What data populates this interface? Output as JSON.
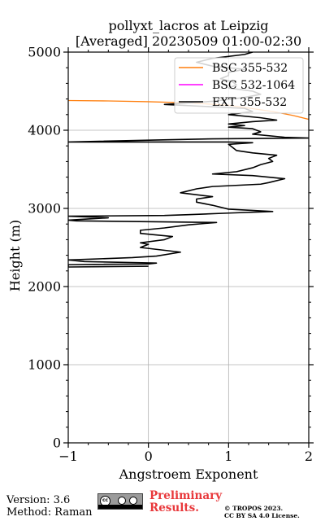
{
  "chart_data": {
    "type": "line",
    "title": "pollyxt_lacros at Leipzig",
    "subtitle": "[Averaged] 20230509 01:00-02:30",
    "xlabel": "Angstroem Exponent",
    "ylabel": "Height (m)",
    "xlim": [
      -1,
      2
    ],
    "ylim": [
      0,
      5000
    ],
    "xticks": [
      -1,
      0,
      1,
      2
    ],
    "yticks": [
      0,
      1000,
      2000,
      3000,
      4000,
      5000
    ],
    "grid": true,
    "legend_position": "top-right",
    "series": [
      {
        "name": "BSC 355-532",
        "color": "#ff7f0e",
        "points": [
          [
            2.0,
            4140
          ],
          [
            1.8,
            4190
          ],
          [
            1.55,
            4240
          ],
          [
            1.0,
            4320
          ],
          [
            0.5,
            4350
          ],
          [
            0.0,
            4365
          ],
          [
            -0.5,
            4375
          ],
          [
            -1.0,
            4380
          ]
        ]
      },
      {
        "name": "BSC 532-1064",
        "color": "#ff00ff",
        "points": []
      },
      {
        "name": "EXT 355-532",
        "color": "#000000",
        "points": [
          [
            0.0,
            2260
          ],
          [
            -1.0,
            2250
          ],
          [
            -1.0,
            2280
          ],
          [
            0.0,
            2290
          ],
          [
            0.1,
            2300
          ],
          [
            -0.8,
            2320
          ],
          [
            -1.0,
            2340
          ],
          [
            -0.2,
            2370
          ],
          [
            0.1,
            2390
          ],
          [
            0.4,
            2440
          ],
          [
            -0.1,
            2500
          ],
          [
            0.0,
            2540
          ],
          [
            -0.1,
            2560
          ],
          [
            0.2,
            2600
          ],
          [
            0.3,
            2640
          ],
          [
            -0.1,
            2680
          ],
          [
            -0.1,
            2720
          ],
          [
            0.2,
            2750
          ],
          [
            0.5,
            2790
          ],
          [
            0.85,
            2820
          ],
          [
            0.0,
            2830
          ],
          [
            -0.9,
            2840
          ],
          [
            -1.0,
            2850
          ],
          [
            -0.5,
            2880
          ],
          [
            -1.0,
            2900
          ],
          [
            0.2,
            2910
          ],
          [
            0.5,
            2920
          ],
          [
            1.0,
            2940
          ],
          [
            1.55,
            2960
          ],
          [
            1.0,
            2990
          ],
          [
            0.8,
            3040
          ],
          [
            0.6,
            3080
          ],
          [
            0.6,
            3120
          ],
          [
            0.8,
            3150
          ],
          [
            0.4,
            3200
          ],
          [
            0.6,
            3250
          ],
          [
            0.8,
            3280
          ],
          [
            1.4,
            3310
          ],
          [
            1.5,
            3330
          ],
          [
            1.7,
            3380
          ],
          [
            1.3,
            3420
          ],
          [
            0.8,
            3440
          ],
          [
            1.1,
            3470
          ],
          [
            1.3,
            3520
          ],
          [
            1.4,
            3560
          ],
          [
            1.55,
            3600
          ],
          [
            1.5,
            3640
          ],
          [
            1.6,
            3680
          ],
          [
            1.3,
            3710
          ],
          [
            1.1,
            3740
          ],
          [
            1.05,
            3780
          ],
          [
            1.0,
            3820
          ],
          [
            1.3,
            3840
          ],
          [
            1.0,
            3850
          ],
          [
            -1.0,
            3850
          ],
          [
            0.3,
            3880
          ],
          [
            0.8,
            3890
          ],
          [
            2.0,
            3900
          ],
          [
            1.7,
            3910
          ],
          [
            1.3,
            3950
          ],
          [
            1.4,
            3980
          ],
          [
            1.3,
            4020
          ],
          [
            1.0,
            4040
          ],
          [
            1.2,
            4060
          ],
          [
            1.0,
            4080
          ],
          [
            1.3,
            4110
          ],
          [
            1.6,
            4130
          ],
          [
            1.4,
            4160
          ],
          [
            1.0,
            4200
          ],
          [
            1.3,
            4240
          ],
          [
            1.2,
            4280
          ],
          [
            0.6,
            4310
          ],
          [
            0.2,
            4330
          ],
          [
            0.8,
            4370
          ],
          [
            1.2,
            4420
          ],
          [
            1.4,
            4460
          ],
          [
            1.3,
            4500
          ],
          [
            1.0,
            4540
          ],
          [
            1.1,
            4580
          ],
          [
            1.05,
            4620
          ],
          [
            0.9,
            4660
          ],
          [
            1.0,
            4700
          ],
          [
            1.0,
            4740
          ],
          [
            1.2,
            4780
          ],
          [
            0.8,
            4820
          ],
          [
            0.6,
            4870
          ],
          [
            0.8,
            4920
          ],
          [
            1.2,
            4970
          ],
          [
            1.3,
            5000
          ]
        ]
      }
    ]
  },
  "footer": {
    "version": "Version: 3.6",
    "method": "Method: Raman",
    "preliminary_line1": "Preliminary",
    "preliminary_line2": "Results.",
    "copyright_line1": "© TROPOS 2023.",
    "copyright_line2": "CC BY SA 4.0 License.",
    "preliminary_color": "#e8383b"
  }
}
